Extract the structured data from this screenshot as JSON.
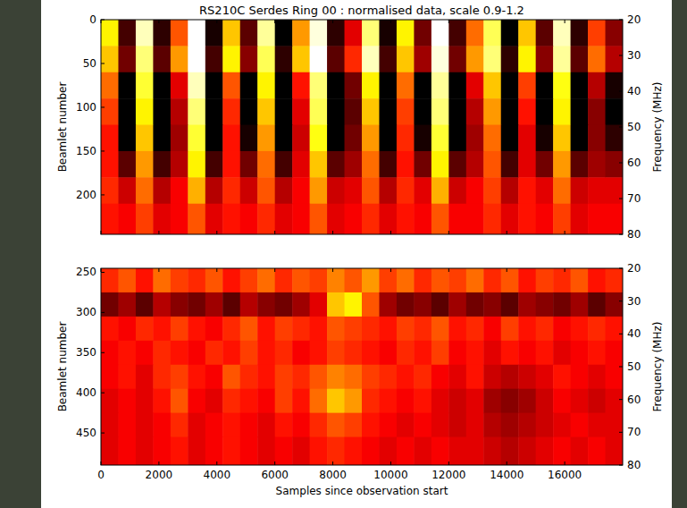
{
  "chart_data": [
    {
      "type": "heatmap",
      "title": "RS210C Serdes Ring 00 : normalised data, scale 0.9-1.2",
      "ylabel": "Beamlet number",
      "y2label": "Frequency (MHz)",
      "xlim": [
        0,
        18000
      ],
      "xticks": [
        0,
        2000,
        4000,
        6000,
        8000,
        10000,
        12000,
        14000,
        16000
      ],
      "ylim": [
        245,
        0
      ],
      "yticks": [
        0,
        50,
        100,
        150,
        200
      ],
      "y2lim": [
        80,
        20
      ],
      "y2ticks": [
        20,
        30,
        40,
        50,
        60,
        70,
        80
      ],
      "tick_labels": "y",
      "zlim": [
        0.9,
        1.2
      ],
      "x_bins": [
        0,
        600,
        1200,
        1800,
        2400,
        3000,
        3600,
        4200,
        4800,
        5400,
        6000,
        6600,
        7200,
        7800,
        8400,
        9000,
        9600,
        10200,
        10800,
        11400,
        12000,
        12600,
        13200,
        13800,
        14400,
        15000,
        15600,
        16200,
        16800,
        17400,
        18000
      ],
      "y_bins": [
        0,
        30,
        60,
        90,
        120,
        150,
        180,
        210,
        245
      ],
      "cells": [
        [
          1.12,
          0.93,
          1.18,
          0.92,
          1.05,
          1.2,
          0.91,
          1.1,
          0.94,
          1.17,
          0.9,
          1.08,
          1.19,
          0.92,
          1.0,
          1.16,
          0.91,
          1.12,
          0.95,
          1.2,
          0.93,
          1.06,
          1.15,
          0.9,
          1.1,
          0.94,
          1.18,
          0.92,
          1.04,
          0.96
        ],
        [
          1.1,
          0.95,
          1.16,
          0.94,
          1.08,
          1.2,
          0.93,
          1.12,
          0.96,
          1.15,
          0.92,
          1.1,
          1.2,
          0.94,
          1.03,
          1.18,
          0.93,
          1.1,
          0.97,
          1.19,
          0.95,
          1.08,
          1.16,
          0.92,
          1.12,
          0.96,
          1.17,
          0.94,
          1.06,
          0.98
        ],
        [
          1.06,
          0.9,
          1.14,
          0.88,
          1.0,
          1.18,
          0.88,
          1.05,
          0.9,
          1.12,
          0.87,
          1.02,
          1.16,
          0.89,
          0.95,
          1.12,
          0.88,
          1.06,
          0.9,
          1.17,
          0.89,
          1.0,
          1.1,
          0.87,
          1.04,
          0.9,
          1.13,
          0.88,
          0.98,
          0.91
        ],
        [
          1.04,
          0.89,
          1.12,
          0.88,
          0.98,
          1.16,
          0.87,
          1.03,
          0.9,
          1.1,
          0.87,
          1.0,
          1.15,
          0.88,
          0.94,
          1.1,
          0.88,
          1.04,
          0.89,
          1.16,
          0.88,
          0.98,
          1.08,
          0.87,
          1.02,
          0.9,
          1.12,
          0.88,
          0.96,
          0.9
        ],
        [
          1.02,
          0.9,
          1.1,
          0.89,
          0.97,
          1.14,
          0.89,
          1.02,
          0.91,
          1.08,
          0.88,
          0.99,
          1.13,
          0.9,
          0.95,
          1.08,
          0.89,
          1.03,
          0.91,
          1.14,
          0.9,
          0.97,
          1.06,
          0.88,
          1.0,
          0.91,
          1.1,
          0.89,
          0.96,
          0.92
        ],
        [
          1.02,
          0.94,
          1.08,
          0.93,
          0.98,
          1.12,
          0.93,
          1.02,
          0.95,
          1.06,
          0.93,
          1.0,
          1.1,
          0.94,
          0.97,
          1.06,
          0.93,
          1.02,
          0.95,
          1.12,
          0.94,
          0.98,
          1.05,
          0.93,
          1.0,
          0.95,
          1.08,
          0.94,
          0.97,
          0.96
        ],
        [
          1.03,
          0.99,
          1.06,
          0.98,
          1.01,
          1.09,
          0.98,
          1.03,
          0.99,
          1.05,
          0.98,
          1.01,
          1.08,
          0.99,
          1.0,
          1.05,
          0.98,
          1.03,
          1.0,
          1.09,
          0.99,
          1.01,
          1.04,
          0.98,
          1.02,
          1.0,
          1.06,
          0.99,
          1.0,
          1.0
        ],
        [
          1.02,
          1.01,
          1.04,
          1.0,
          1.01,
          1.05,
          1.0,
          1.02,
          1.01,
          1.03,
          1.0,
          1.01,
          1.05,
          1.0,
          1.01,
          1.03,
          1.0,
          1.02,
          1.01,
          1.05,
          1.01,
          1.01,
          1.03,
          1.0,
          1.02,
          1.01,
          1.04,
          1.0,
          1.01,
          1.01
        ]
      ]
    },
    {
      "type": "heatmap",
      "xlabel": "Samples since observation start",
      "ylabel": "Beamlet number",
      "y2label": "Frequency (MHz)",
      "xlim": [
        0,
        18000
      ],
      "xticks": [
        0,
        2000,
        4000,
        6000,
        8000,
        10000,
        12000,
        14000,
        16000
      ],
      "ylim": [
        490,
        245
      ],
      "yticks": [
        250,
        300,
        350,
        400,
        450
      ],
      "y2lim": [
        80,
        20
      ],
      "y2ticks": [
        20,
        30,
        40,
        50,
        60,
        70,
        80
      ],
      "zlim": [
        0.9,
        1.2
      ],
      "x_bins": [
        0,
        600,
        1200,
        1800,
        2400,
        3000,
        3600,
        4200,
        4800,
        5400,
        6000,
        6600,
        7200,
        7800,
        8400,
        9000,
        9600,
        10200,
        10800,
        11400,
        12000,
        12600,
        13200,
        13800,
        14400,
        15000,
        15600,
        16200,
        16800,
        17400,
        18000
      ],
      "y_bins": [
        245,
        275,
        305,
        335,
        365,
        395,
        425,
        455,
        490
      ],
      "cells": [
        [
          1.03,
          1.05,
          1.02,
          1.06,
          1.04,
          1.03,
          1.05,
          1.02,
          1.04,
          1.06,
          1.03,
          1.05,
          1.04,
          1.07,
          1.05,
          1.08,
          1.04,
          1.06,
          1.03,
          1.05,
          1.04,
          1.06,
          1.03,
          1.05,
          1.02,
          1.04,
          1.03,
          1.05,
          1.02,
          1.03
        ],
        [
          0.95,
          0.97,
          0.94,
          0.98,
          0.96,
          0.95,
          0.97,
          0.94,
          0.98,
          0.96,
          0.95,
          0.97,
          1.0,
          1.1,
          1.12,
          1.05,
          0.97,
          0.95,
          0.96,
          0.94,
          0.97,
          0.95,
          0.96,
          0.94,
          0.97,
          0.96,
          0.95,
          0.97,
          0.94,
          0.96
        ],
        [
          1.02,
          1.01,
          1.03,
          1.02,
          1.04,
          1.02,
          1.01,
          1.03,
          1.05,
          1.02,
          1.04,
          1.03,
          1.02,
          1.05,
          1.04,
          1.03,
          1.02,
          1.04,
          1.03,
          1.05,
          1.02,
          1.03,
          1.01,
          1.04,
          1.02,
          1.03,
          1.01,
          1.02,
          1.03,
          1.02
        ],
        [
          1.01,
          1.02,
          1.01,
          1.03,
          1.02,
          1.01,
          1.03,
          1.02,
          1.04,
          1.02,
          1.03,
          1.01,
          1.02,
          1.04,
          1.03,
          1.02,
          1.01,
          1.03,
          1.02,
          1.04,
          1.01,
          1.02,
          1.0,
          1.02,
          1.01,
          1.02,
          1.0,
          1.01,
          1.02,
          1.01
        ],
        [
          1.01,
          1.02,
          1.0,
          1.03,
          1.04,
          1.02,
          1.01,
          1.05,
          1.03,
          1.02,
          1.04,
          1.03,
          1.05,
          1.07,
          1.06,
          1.04,
          1.03,
          1.02,
          1.03,
          1.01,
          1.0,
          1.02,
          0.99,
          0.98,
          0.99,
          1.0,
          1.02,
          1.01,
          1.0,
          1.01
        ],
        [
          1.0,
          1.01,
          1.0,
          1.02,
          1.05,
          1.01,
          1.0,
          1.03,
          1.02,
          1.01,
          1.04,
          1.02,
          1.06,
          1.1,
          1.08,
          1.03,
          1.02,
          1.01,
          1.02,
          1.0,
          0.99,
          1.0,
          0.97,
          0.96,
          0.97,
          0.99,
          1.01,
          1.0,
          0.99,
          1.0
        ],
        [
          1.0,
          1.01,
          1.0,
          1.01,
          1.03,
          1.0,
          1.01,
          1.02,
          1.01,
          1.0,
          1.02,
          1.01,
          1.03,
          1.05,
          1.04,
          1.02,
          1.01,
          1.0,
          1.01,
          1.0,
          0.99,
          1.0,
          0.98,
          0.97,
          0.98,
          0.99,
          1.0,
          1.01,
          1.0,
          1.0
        ],
        [
          1.0,
          1.01,
          1.0,
          1.01,
          1.02,
          1.0,
          1.01,
          1.02,
          1.01,
          1.0,
          1.01,
          1.0,
          1.02,
          1.03,
          1.02,
          1.01,
          1.0,
          1.01,
          1.0,
          1.01,
          1.0,
          1.0,
          0.99,
          0.98,
          0.99,
          1.0,
          1.01,
          1.0,
          1.01,
          1.0
        ]
      ]
    }
  ]
}
